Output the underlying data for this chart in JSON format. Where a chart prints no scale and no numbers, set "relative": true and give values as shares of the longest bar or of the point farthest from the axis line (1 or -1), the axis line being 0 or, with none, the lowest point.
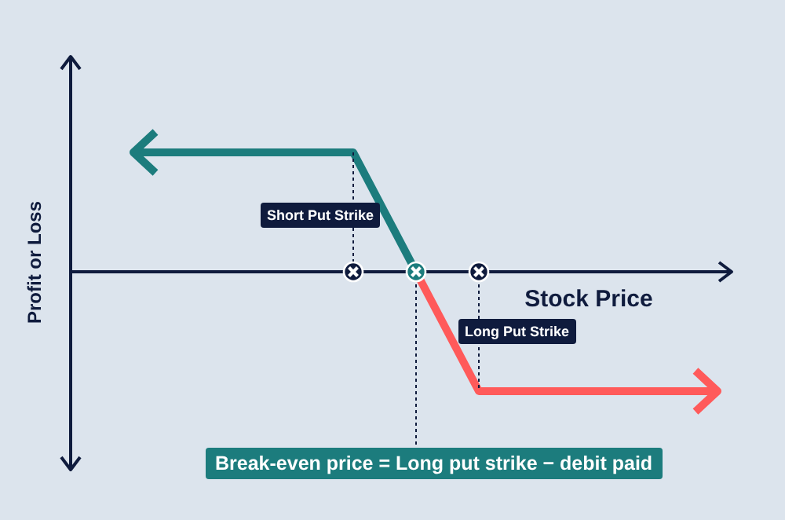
{
  "chart_data": {
    "type": "line",
    "relative": true,
    "xlabel": "Stock Price",
    "ylabel": "Profit or Loss",
    "categories": [
      null,
      null,
      null,
      null,
      null,
      null,
      null,
      null,
      null,
      null,
      null,
      null,
      null,
      null,
      null,
      null,
      null,
      null,
      null
    ],
    "series": [
      {
        "color": "#1c7c7d",
        "values": [
          1,
          1,
          1,
          1,
          1,
          1,
          1,
          1,
          0.5,
          0,
          null,
          null,
          null,
          null,
          null,
          null,
          null,
          null,
          null
        ]
      },
      {
        "color": "#ff5a5a",
        "values": [
          null,
          null,
          null,
          null,
          null,
          null,
          null,
          null,
          null,
          0,
          -0.5,
          -1,
          -1,
          -1,
          -1,
          -1,
          -1,
          -1,
          -1
        ]
      }
    ],
    "annotations": [
      "Short Put Strike",
      "Long Put Strike",
      "Break-even price = Long put strike − debit paid"
    ]
  }
}
